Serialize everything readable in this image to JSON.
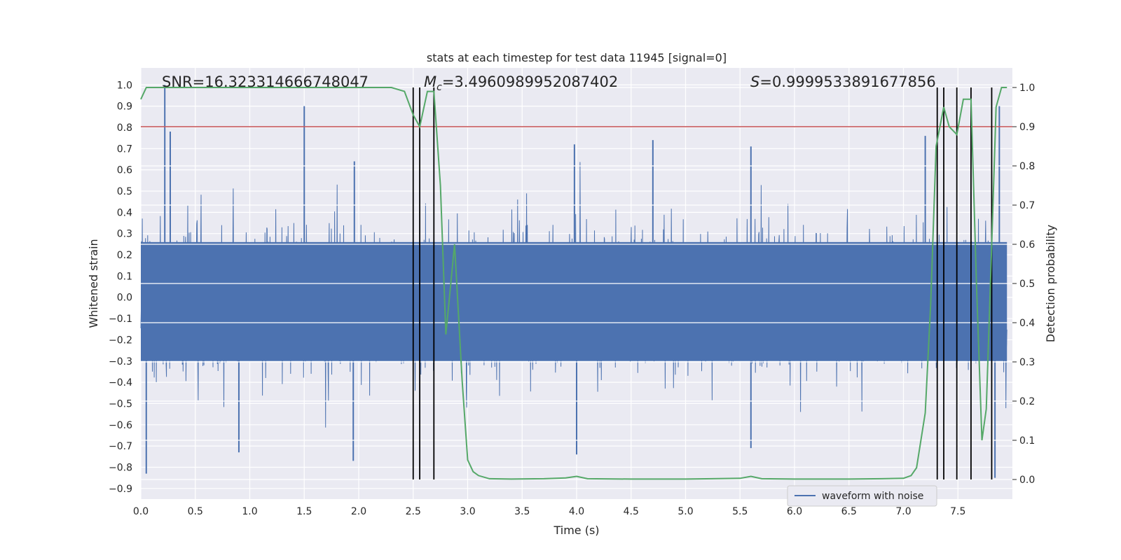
{
  "chart_data": {
    "type": "line",
    "title": "stats at each timestep for test data 11945 [signal=0]",
    "xlabel": "Time (s)",
    "ylabel": "Whitened strain",
    "ylabel_right": "Detection probability",
    "xlim": [
      0.0,
      8.0
    ],
    "ylim": [
      -0.95,
      1.08
    ],
    "ylim_right": [
      -0.05,
      1.05
    ],
    "xticks": [
      0.0,
      0.5,
      1.0,
      1.5,
      2.0,
      2.5,
      3.0,
      3.5,
      4.0,
      4.5,
      5.0,
      5.5,
      6.0,
      6.5,
      7.0,
      7.5
    ],
    "yticks": [
      1.0,
      0.9,
      0.8,
      0.7,
      0.6,
      0.5,
      0.4,
      0.3,
      0.2,
      0.1,
      0.0,
      -0.1,
      -0.2,
      -0.3,
      -0.4,
      -0.5,
      -0.6,
      -0.7,
      -0.8,
      -0.9
    ],
    "yticks_right": [
      1.0,
      0.9,
      0.8,
      0.7,
      0.6,
      0.5,
      0.4,
      0.3,
      0.2,
      0.1,
      0.0
    ],
    "grid": true,
    "legend": {
      "label": "waveform with noise",
      "position": "bottom-right"
    },
    "annotations": {
      "snr": "SNR=16.323314666748047",
      "mc_symbol": "M",
      "mc_sub": "c",
      "mc_value": "=3.4960989952087402",
      "s_symbol": "S",
      "s_value": "=0.9999533891677856"
    },
    "threshold_line": {
      "value_right_axis": 0.9,
      "color": "#c44e52"
    },
    "detection_markers_x": [
      2.5,
      2.56,
      2.69,
      7.31,
      7.37,
      7.49,
      7.62,
      7.81
    ],
    "series": [
      {
        "name": "waveform with noise",
        "axis": "left",
        "color": "#4c72b0",
        "envelope": {
          "x": [
            0.0,
            1.0,
            2.0,
            2.5,
            3.0,
            4.0,
            5.0,
            6.0,
            7.0,
            7.5,
            7.9,
            8.0
          ],
          "typical_amplitude": 0.42,
          "spikes_up": [
            {
              "x": 0.22,
              "y": 1.0
            },
            {
              "x": 1.5,
              "y": 0.9
            },
            {
              "x": 0.27,
              "y": 0.78
            },
            {
              "x": 1.96,
              "y": 0.64
            },
            {
              "x": 3.98,
              "y": 0.72
            },
            {
              "x": 4.7,
              "y": 0.74
            },
            {
              "x": 5.6,
              "y": 0.71
            },
            {
              "x": 7.2,
              "y": 0.76
            },
            {
              "x": 7.88,
              "y": 0.9
            }
          ],
          "spikes_down": [
            {
              "x": 0.05,
              "y": -0.83
            },
            {
              "x": 0.9,
              "y": -0.73
            },
            {
              "x": 1.95,
              "y": -0.77
            },
            {
              "x": 4.0,
              "y": -0.74
            },
            {
              "x": 5.6,
              "y": -0.71
            },
            {
              "x": 7.84,
              "y": -0.85
            }
          ]
        }
      },
      {
        "name": "detection probability",
        "axis": "right",
        "color": "#55a868",
        "x": [
          0.0,
          0.05,
          0.1,
          2.3,
          2.42,
          2.5,
          2.56,
          2.63,
          2.69,
          2.75,
          2.8,
          2.88,
          2.95,
          3.0,
          3.05,
          3.1,
          3.2,
          3.4,
          3.7,
          3.9,
          4.0,
          4.1,
          4.5,
          5.0,
          5.5,
          5.6,
          5.7,
          6.0,
          6.5,
          6.8,
          7.0,
          7.07,
          7.12,
          7.2,
          7.25,
          7.3,
          7.37,
          7.42,
          7.49,
          7.55,
          7.62,
          7.67,
          7.72,
          7.76,
          7.81,
          7.85,
          7.9,
          7.95
        ],
        "y": [
          0.97,
          1.0,
          1.0,
          1.0,
          0.99,
          0.93,
          0.9,
          0.99,
          0.99,
          0.75,
          0.37,
          0.6,
          0.25,
          0.05,
          0.02,
          0.01,
          0.002,
          0.001,
          0.002,
          0.004,
          0.008,
          0.002,
          0.001,
          0.001,
          0.003,
          0.008,
          0.002,
          0.001,
          0.001,
          0.002,
          0.003,
          0.01,
          0.03,
          0.17,
          0.45,
          0.85,
          0.95,
          0.9,
          0.88,
          0.97,
          0.97,
          0.5,
          0.1,
          0.18,
          0.6,
          0.95,
          1.0,
          1.0
        ]
      }
    ]
  }
}
